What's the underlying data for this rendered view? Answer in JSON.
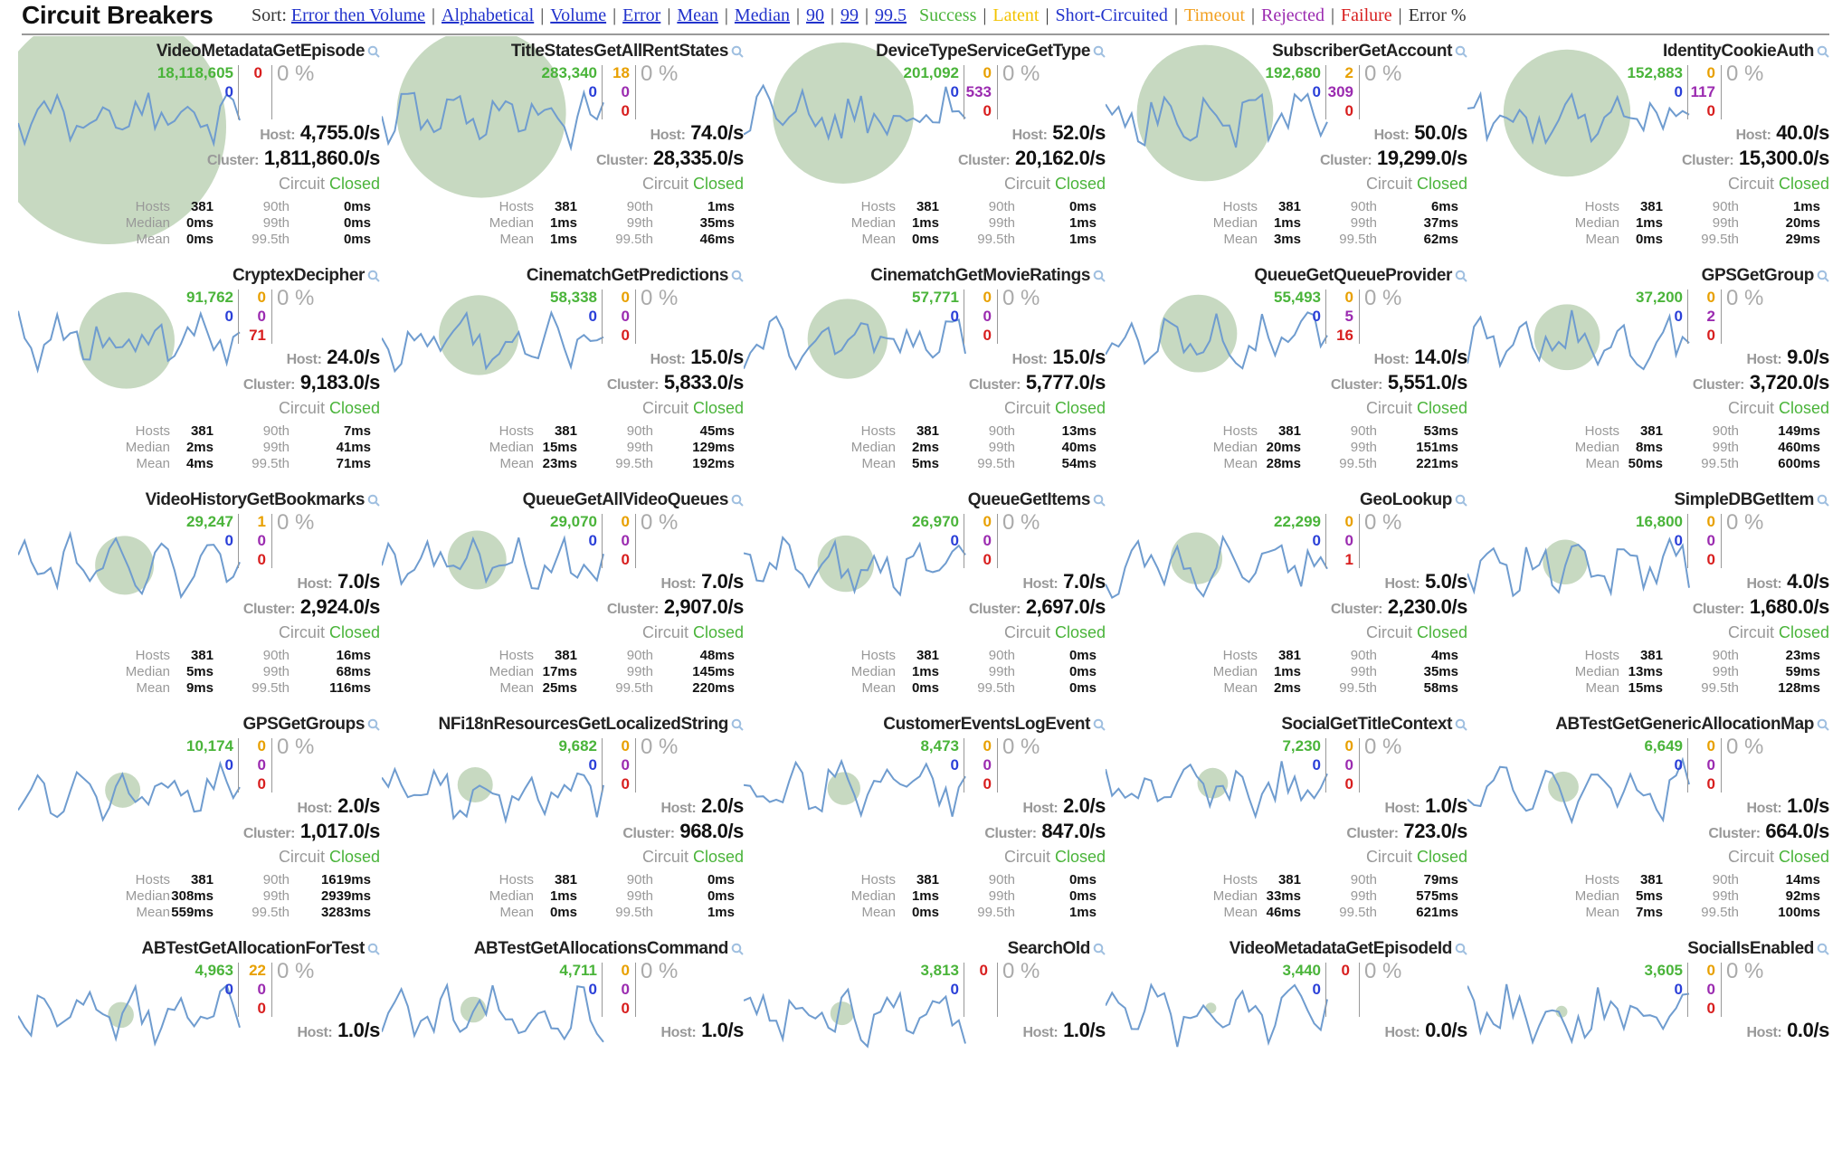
{
  "header": {
    "title": "Circuit Breakers",
    "sort_label": "Sort:",
    "sort_links": [
      {
        "label": "Error then Volume",
        "color": "#2233cc",
        "link": true
      },
      {
        "label": "Alphabetical",
        "color": "#2233cc",
        "link": true
      },
      {
        "label": "Volume",
        "color": "#2233cc",
        "link": true
      },
      {
        "label": "Error",
        "color": "#2233cc",
        "link": true
      },
      {
        "label": "Mean",
        "color": "#2233cc",
        "link": true
      },
      {
        "label": "Median",
        "color": "#2233cc",
        "link": true
      },
      {
        "label": "90",
        "color": "#2233cc",
        "link": true
      },
      {
        "label": "99",
        "color": "#2233cc",
        "link": true
      },
      {
        "label": "99.5",
        "color": "#2233cc",
        "link": true
      }
    ],
    "legend": [
      {
        "label": "Success",
        "color": "#4ab43a"
      },
      {
        "label": "Latent",
        "color": "#f2c200"
      },
      {
        "label": "Short-Circuited",
        "color": "#2233cc"
      },
      {
        "label": "Timeout",
        "color": "#f2a020"
      },
      {
        "label": "Rejected",
        "color": "#9b2bb0"
      },
      {
        "label": "Failure",
        "color": "#d81e1e"
      },
      {
        "label": "Error %",
        "color": "#333333"
      }
    ]
  },
  "labels": {
    "host": "Host:",
    "cluster": "Cluster:",
    "circuit": "Circuit",
    "hosts": "Hosts",
    "median": "Median",
    "mean": "Mean",
    "p90": "90th",
    "p99": "99th",
    "p995": "99.5th"
  },
  "colors": {
    "sparkline": "#6f9ccf",
    "bubble": "#c7d9c1"
  },
  "cards": [
    {
      "name": "VideoMetadataGetEpisode",
      "success": "18,118,605",
      "short": "0",
      "latent": "",
      "timeout": "",
      "rejected": "",
      "failure": "0",
      "error": "0 %",
      "host": "4,755.0/s",
      "cluster": "1,811,860.0/s",
      "status": "Closed",
      "hosts": "381",
      "median": "0ms",
      "mean": "0ms",
      "p90": "0ms",
      "p99": "0ms",
      "p995": "0ms",
      "bubble_size": 1.0
    },
    {
      "name": "TitleStatesGetAllRentStates",
      "success": "283,340",
      "short": "0",
      "latent": "18",
      "timeout": "",
      "rejected": "0",
      "failure": "0",
      "error": "0 %",
      "host": "74.0/s",
      "cluster": "28,335.0/s",
      "status": "Closed",
      "hosts": "381",
      "median": "1ms",
      "mean": "1ms",
      "p90": "1ms",
      "p99": "35ms",
      "p995": "46ms",
      "bubble_size": 0.72
    },
    {
      "name": "DeviceTypeServiceGetType",
      "success": "201,092",
      "short": "0",
      "latent": "0",
      "timeout": "",
      "rejected": "533",
      "failure": "0",
      "error": "0 %",
      "host": "52.0/s",
      "cluster": "20,162.0/s",
      "status": "Closed",
      "hosts": "381",
      "median": "1ms",
      "mean": "0ms",
      "p90": "0ms",
      "p99": "1ms",
      "p995": "1ms",
      "bubble_size": 0.6
    },
    {
      "name": "SubscriberGetAccount",
      "success": "192,680",
      "short": "0",
      "latent": "2",
      "timeout": "",
      "rejected": "309",
      "failure": "0",
      "error": "0 %",
      "host": "50.0/s",
      "cluster": "19,299.0/s",
      "status": "Closed",
      "hosts": "381",
      "median": "1ms",
      "mean": "3ms",
      "p90": "6ms",
      "p99": "37ms",
      "p995": "62ms",
      "bubble_size": 0.58
    },
    {
      "name": "IdentityCookieAuth",
      "success": "152,883",
      "short": "0",
      "latent": "0",
      "timeout": "",
      "rejected": "117",
      "failure": "0",
      "error": "0 %",
      "host": "40.0/s",
      "cluster": "15,300.0/s",
      "status": "Closed",
      "hosts": "381",
      "median": "1ms",
      "mean": "0ms",
      "p90": "1ms",
      "p99": "20ms",
      "p995": "29ms",
      "bubble_size": 0.54
    },
    {
      "name": "CryptexDecipher",
      "success": "91,762",
      "short": "0",
      "latent": "0",
      "timeout": "",
      "rejected": "0",
      "failure": "71",
      "error": "0 %",
      "host": "24.0/s",
      "cluster": "9,183.0/s",
      "status": "Closed",
      "hosts": "381",
      "median": "2ms",
      "mean": "4ms",
      "p90": "7ms",
      "p99": "41ms",
      "p995": "71ms",
      "bubble_size": 0.41
    },
    {
      "name": "CinematchGetPredictions",
      "success": "58,338",
      "short": "0",
      "latent": "0",
      "timeout": "",
      "rejected": "0",
      "failure": "0",
      "error": "0 %",
      "host": "15.0/s",
      "cluster": "5,833.0/s",
      "status": "Closed",
      "hosts": "381",
      "median": "15ms",
      "mean": "23ms",
      "p90": "45ms",
      "p99": "129ms",
      "p995": "192ms",
      "bubble_size": 0.34
    },
    {
      "name": "CinematchGetMovieRatings",
      "success": "57,771",
      "short": "0",
      "latent": "0",
      "timeout": "",
      "rejected": "0",
      "failure": "0",
      "error": "0 %",
      "host": "15.0/s",
      "cluster": "5,777.0/s",
      "status": "Closed",
      "hosts": "381",
      "median": "2ms",
      "mean": "5ms",
      "p90": "13ms",
      "p99": "40ms",
      "p995": "54ms",
      "bubble_size": 0.34
    },
    {
      "name": "QueueGetQueueProvider",
      "success": "55,493",
      "short": "0",
      "latent": "0",
      "timeout": "",
      "rejected": "5",
      "failure": "16",
      "error": "0 %",
      "host": "14.0/s",
      "cluster": "5,551.0/s",
      "status": "Closed",
      "hosts": "381",
      "median": "20ms",
      "mean": "28ms",
      "p90": "53ms",
      "p99": "151ms",
      "p995": "221ms",
      "bubble_size": 0.33
    },
    {
      "name": "GPSGetGroup",
      "success": "37,200",
      "short": "0",
      "latent": "0",
      "timeout": "",
      "rejected": "2",
      "failure": "0",
      "error": "0 %",
      "host": "9.0/s",
      "cluster": "3,720.0/s",
      "status": "Closed",
      "hosts": "381",
      "median": "8ms",
      "mean": "50ms",
      "p90": "149ms",
      "p99": "460ms",
      "p995": "600ms",
      "bubble_size": 0.28
    },
    {
      "name": "VideoHistoryGetBookmarks",
      "success": "29,247",
      "short": "0",
      "latent": "1",
      "timeout": "",
      "rejected": "0",
      "failure": "0",
      "error": "0 %",
      "host": "7.0/s",
      "cluster": "2,924.0/s",
      "status": "Closed",
      "hosts": "381",
      "median": "5ms",
      "mean": "9ms",
      "p90": "16ms",
      "p99": "68ms",
      "p995": "116ms",
      "bubble_size": 0.25
    },
    {
      "name": "QueueGetAllVideoQueues",
      "success": "29,070",
      "short": "0",
      "latent": "0",
      "timeout": "",
      "rejected": "0",
      "failure": "0",
      "error": "0 %",
      "host": "7.0/s",
      "cluster": "2,907.0/s",
      "status": "Closed",
      "hosts": "381",
      "median": "17ms",
      "mean": "25ms",
      "p90": "48ms",
      "p99": "145ms",
      "p995": "220ms",
      "bubble_size": 0.25
    },
    {
      "name": "QueueGetItems",
      "success": "26,970",
      "short": "0",
      "latent": "0",
      "timeout": "",
      "rejected": "0",
      "failure": "0",
      "error": "0 %",
      "host": "7.0/s",
      "cluster": "2,697.0/s",
      "status": "Closed",
      "hosts": "381",
      "median": "1ms",
      "mean": "0ms",
      "p90": "0ms",
      "p99": "0ms",
      "p995": "0ms",
      "bubble_size": 0.24
    },
    {
      "name": "GeoLookup",
      "success": "22,299",
      "short": "0",
      "latent": "0",
      "timeout": "",
      "rejected": "0",
      "failure": "1",
      "error": "0 %",
      "host": "5.0/s",
      "cluster": "2,230.0/s",
      "status": "Closed",
      "hosts": "381",
      "median": "1ms",
      "mean": "2ms",
      "p90": "4ms",
      "p99": "35ms",
      "p995": "58ms",
      "bubble_size": 0.22
    },
    {
      "name": "SimpleDBGetItem",
      "success": "16,800",
      "short": "0",
      "latent": "0",
      "timeout": "",
      "rejected": "0",
      "failure": "0",
      "error": "0 %",
      "host": "4.0/s",
      "cluster": "1,680.0/s",
      "status": "Closed",
      "hosts": "381",
      "median": "13ms",
      "mean": "15ms",
      "p90": "23ms",
      "p99": "59ms",
      "p995": "128ms",
      "bubble_size": 0.19
    },
    {
      "name": "GPSGetGroups",
      "success": "10,174",
      "short": "0",
      "latent": "0",
      "timeout": "",
      "rejected": "0",
      "failure": "0",
      "error": "0 %",
      "host": "2.0/s",
      "cluster": "1,017.0/s",
      "status": "Closed",
      "hosts": "381",
      "median": "308ms",
      "mean": "559ms",
      "p90": "1619ms",
      "p99": "2939ms",
      "p995": "3283ms",
      "bubble_size": 0.15
    },
    {
      "name": "NFi18nResourcesGetLocalizedString",
      "success": "9,682",
      "short": "0",
      "latent": "0",
      "timeout": "",
      "rejected": "0",
      "failure": "0",
      "error": "0 %",
      "host": "2.0/s",
      "cluster": "968.0/s",
      "status": "Closed",
      "hosts": "381",
      "median": "1ms",
      "mean": "0ms",
      "p90": "0ms",
      "p99": "0ms",
      "p995": "1ms",
      "bubble_size": 0.15
    },
    {
      "name": "CustomerEventsLogEvent",
      "success": "8,473",
      "short": "0",
      "latent": "0",
      "timeout": "",
      "rejected": "0",
      "failure": "0",
      "error": "0 %",
      "host": "2.0/s",
      "cluster": "847.0/s",
      "status": "Closed",
      "hosts": "381",
      "median": "1ms",
      "mean": "0ms",
      "p90": "0ms",
      "p99": "0ms",
      "p995": "1ms",
      "bubble_size": 0.14
    },
    {
      "name": "SocialGetTitleContext",
      "success": "7,230",
      "short": "0",
      "latent": "0",
      "timeout": "",
      "rejected": "0",
      "failure": "0",
      "error": "0 %",
      "host": "1.0/s",
      "cluster": "723.0/s",
      "status": "Closed",
      "hosts": "381",
      "median": "33ms",
      "mean": "46ms",
      "p90": "79ms",
      "p99": "575ms",
      "p995": "621ms",
      "bubble_size": 0.13
    },
    {
      "name": "ABTestGetGenericAllocationMap",
      "success": "6,649",
      "short": "0",
      "latent": "0",
      "timeout": "",
      "rejected": "0",
      "failure": "0",
      "error": "0 %",
      "host": "1.0/s",
      "cluster": "664.0/s",
      "status": "Closed",
      "hosts": "381",
      "median": "5ms",
      "mean": "7ms",
      "p90": "14ms",
      "p99": "92ms",
      "p995": "100ms",
      "bubble_size": 0.13
    },
    {
      "name": "ABTestGetAllocationForTest",
      "success": "4,963",
      "short": "0",
      "latent": "22",
      "timeout": "",
      "rejected": "0",
      "failure": "0",
      "error": "0 %",
      "host": "1.0/s",
      "cluster": "",
      "status": "",
      "hosts": "",
      "median": "",
      "mean": "",
      "p90": "",
      "p99": "",
      "p995": "",
      "bubble_size": 0.11
    },
    {
      "name": "ABTestGetAllocationsCommand",
      "success": "4,711",
      "short": "0",
      "latent": "0",
      "timeout": "",
      "rejected": "0",
      "failure": "0",
      "error": "0 %",
      "host": "1.0/s",
      "cluster": "",
      "status": "",
      "hosts": "",
      "median": "",
      "mean": "",
      "p90": "",
      "p99": "",
      "p995": "",
      "bubble_size": 0.11
    },
    {
      "name": "SearchOld",
      "success": "3,813",
      "short": "0",
      "latent": "",
      "timeout": "",
      "rejected": "",
      "failure": "0",
      "error": "0 %",
      "host": "1.0/s",
      "cluster": "",
      "status": "",
      "hosts": "",
      "median": "",
      "mean": "",
      "p90": "",
      "p99": "",
      "p995": "",
      "bubble_size": 0.1
    },
    {
      "name": "VideoMetadataGetEpisodeId",
      "success": "3,440",
      "short": "0",
      "latent": "",
      "timeout": "",
      "rejected": "",
      "failure": "0",
      "error": "0 %",
      "host": "0.0/s",
      "cluster": "",
      "status": "",
      "hosts": "",
      "median": "",
      "mean": "",
      "p90": "",
      "p99": "",
      "p995": "",
      "bubble_size": 0.04
    },
    {
      "name": "SocialIsEnabled",
      "success": "3,605",
      "short": "0",
      "latent": "0",
      "timeout": "",
      "rejected": "0",
      "failure": "0",
      "error": "0 %",
      "host": "0.0/s",
      "cluster": "",
      "status": "",
      "hosts": "",
      "median": "",
      "mean": "",
      "p90": "",
      "p99": "",
      "p995": "",
      "bubble_size": 0.05
    }
  ]
}
